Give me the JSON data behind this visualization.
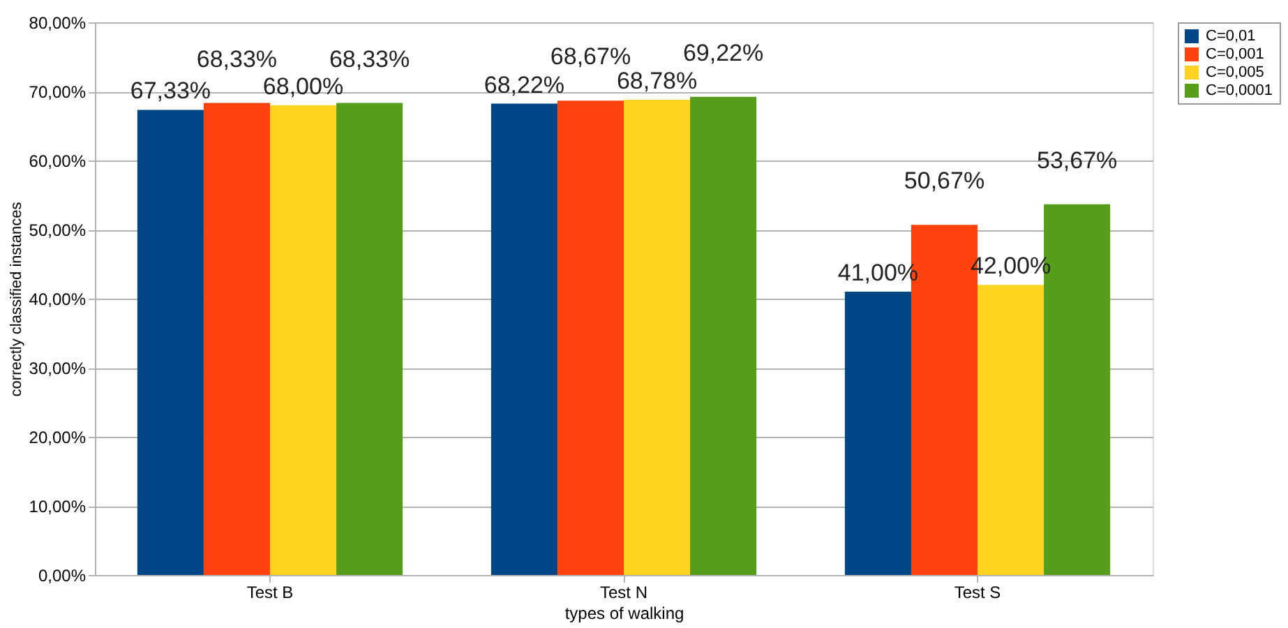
{
  "chart_data": {
    "type": "bar",
    "xlabel": "types of walking",
    "ylabel": "correctly classified instances",
    "categories": [
      "Test B",
      "Test N",
      "Test S"
    ],
    "series": [
      {
        "name": "C=0,01",
        "color": "#004586",
        "values": [
          67.33,
          68.22,
          41.0
        ],
        "value_labels": [
          "67,33%",
          "68,22%",
          "41,00%"
        ]
      },
      {
        "name": "C=0,001",
        "color": "#ff420e",
        "values": [
          68.33,
          68.67,
          50.67
        ],
        "value_labels": [
          "68,33%",
          "68,67%",
          "50,67%"
        ]
      },
      {
        "name": "C=0,005",
        "color": "#ffd320",
        "values": [
          68.0,
          68.78,
          42.0
        ],
        "value_labels": [
          "68,00%",
          "68,78%",
          "42,00%"
        ]
      },
      {
        "name": "C=0,0001",
        "color": "#579d1c",
        "values": [
          68.33,
          69.22,
          53.67
        ],
        "value_labels": [
          "68,33%",
          "69,22%",
          "53,67%"
        ]
      }
    ],
    "ylim": [
      0,
      80
    ],
    "yticks": [
      {
        "value": 0,
        "label": "0,00%"
      },
      {
        "value": 10,
        "label": "10,00%"
      },
      {
        "value": 20,
        "label": "20,00%"
      },
      {
        "value": 30,
        "label": "30,00%"
      },
      {
        "value": 40,
        "label": "40,00%"
      },
      {
        "value": 50,
        "label": "50,00%"
      },
      {
        "value": 60,
        "label": "60,00%"
      },
      {
        "value": 70,
        "label": "70,00%"
      },
      {
        "value": 80,
        "label": "80,00%"
      }
    ],
    "grid": "y",
    "legend": "top right"
  }
}
